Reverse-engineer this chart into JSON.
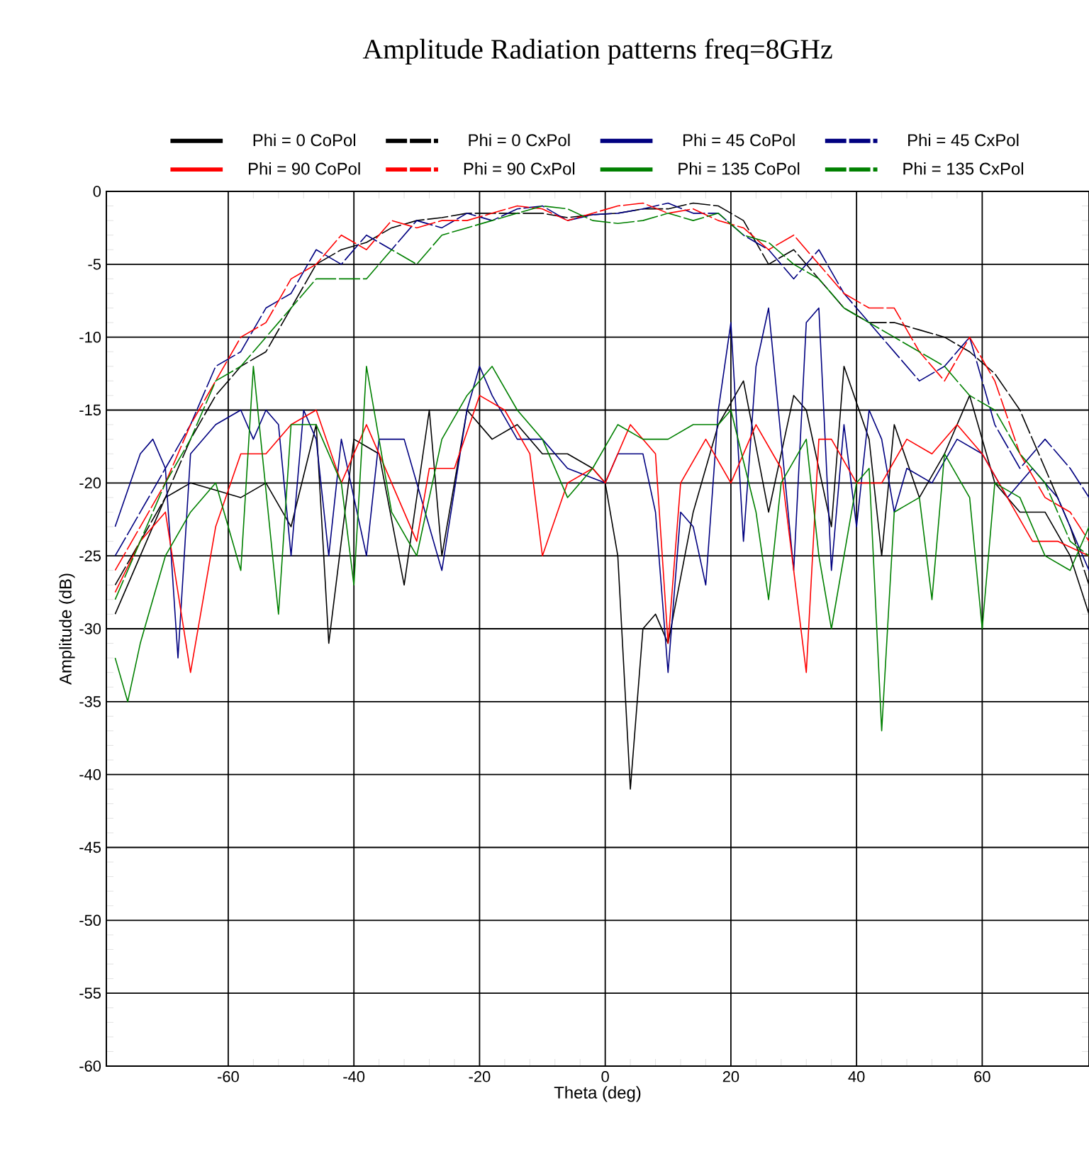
{
  "chart_data": {
    "type": "line",
    "title": "Amplitude Radiation patterns freq=8GHz",
    "xlabel": "Theta (deg)",
    "ylabel": "Amplitude (dB)",
    "x": [
      -78,
      -74,
      -70,
      -66,
      -62,
      -58,
      -54,
      -50,
      -46,
      -42,
      -38,
      -34,
      -30,
      -26,
      -22,
      -18,
      -14,
      -10,
      -6,
      -2,
      2,
      6,
      10,
      14,
      18,
      22,
      26,
      30,
      34,
      38,
      42,
      46,
      50,
      54,
      58,
      62,
      66,
      70,
      74,
      77
    ],
    "series": [
      {
        "name": "Phi = 0 CoPol",
        "color": "#000000",
        "line_style": "solid",
        "x": [
          -78,
          -74,
          -70,
          -66,
          -62,
          -58,
          -54,
          -50,
          -46,
          -44,
          -40,
          -36,
          -32,
          -28,
          -26,
          -22,
          -18,
          -14,
          -10,
          -6,
          -2,
          0,
          2,
          4,
          6,
          8,
          10,
          14,
          18,
          22,
          26,
          30,
          32,
          36,
          38,
          42,
          44,
          46,
          50,
          54,
          58,
          62,
          66,
          70,
          74,
          77
        ],
        "values": [
          -29,
          -25,
          -21,
          -20,
          -20.5,
          -21,
          -20,
          -23,
          -16,
          -31,
          -17,
          -18,
          -27,
          -15,
          -25,
          -15,
          -17,
          -16,
          -18,
          -18,
          -19,
          -20,
          -25,
          -41,
          -30,
          -29,
          -31,
          -22,
          -16,
          -13,
          -22,
          -14,
          -15,
          -23,
          -12,
          -17,
          -25,
          -16,
          -21,
          -18,
          -14,
          -20,
          -22,
          -22,
          -25,
          -29
        ]
      },
      {
        "name": "Phi = 0 CxPol",
        "color": "#000000",
        "line_style": "dashed",
        "values": [
          -27,
          -24,
          -21,
          -17,
          -14,
          -12,
          -11,
          -8,
          -5,
          -4,
          -3.5,
          -2.5,
          -2,
          -1.8,
          -1.5,
          -1.5,
          -1.5,
          -1.5,
          -1.8,
          -1.6,
          -1.5,
          -1.2,
          -1.2,
          -0.8,
          -1,
          -2,
          -5,
          -4,
          -6,
          -8,
          -9,
          -9,
          -9.5,
          -10,
          -11,
          -12.5,
          -15,
          -19,
          -23,
          -27
        ]
      },
      {
        "name": "Phi = 45 CoPol",
        "color": "#000080",
        "line_style": "solid",
        "x": [
          -78,
          -74,
          -72,
          -70,
          -68,
          -66,
          -62,
          -58,
          -56,
          -54,
          -52,
          -50,
          -48,
          -46,
          -44,
          -42,
          -38,
          -36,
          -32,
          -30,
          -26,
          -22,
          -20,
          -18,
          -14,
          -10,
          -6,
          0,
          2,
          6,
          8,
          10,
          12,
          14,
          16,
          18,
          20,
          22,
          24,
          26,
          30,
          32,
          34,
          36,
          38,
          40,
          42,
          44,
          46,
          48,
          52,
          56,
          60,
          64,
          68,
          72,
          77
        ],
        "values": [
          -23,
          -18,
          -17,
          -19,
          -32,
          -18,
          -16,
          -15,
          -17,
          -15,
          -16,
          -25,
          -15,
          -17,
          -25,
          -17,
          -25,
          -17,
          -17,
          -20,
          -26,
          -15,
          -12,
          -14,
          -17,
          -17,
          -19,
          -20,
          -18,
          -18,
          -22,
          -33,
          -22,
          -23,
          -27,
          -15,
          -9,
          -24,
          -12,
          -8,
          -26,
          -9,
          -8,
          -26,
          -16,
          -23,
          -15,
          -17,
          -22,
          -19,
          -20,
          -17,
          -18,
          -21,
          -19,
          -21,
          -26
        ]
      },
      {
        "name": "Phi = 45 CxPol",
        "color": "#000080",
        "line_style": "dashed",
        "values": [
          -25,
          -22,
          -19,
          -16,
          -12,
          -11,
          -8,
          -7,
          -4,
          -5,
          -3,
          -4,
          -2,
          -2.5,
          -1.5,
          -2,
          -1.2,
          -1,
          -2,
          -1.6,
          -1.5,
          -1.2,
          -0.8,
          -1.5,
          -1.5,
          -3,
          -4,
          -6,
          -4,
          -7,
          -9,
          -11,
          -13,
          -12,
          -10,
          -16,
          -19,
          -17,
          -19,
          -21
        ]
      },
      {
        "name": "Phi = 90 CoPol",
        "color": "#ff0000",
        "line_style": "solid",
        "x": [
          -78,
          -74,
          -70,
          -66,
          -62,
          -58,
          -54,
          -50,
          -46,
          -42,
          -38,
          -34,
          -30,
          -28,
          -24,
          -20,
          -16,
          -12,
          -10,
          -6,
          -2,
          0,
          2,
          4,
          8,
          10,
          12,
          16,
          20,
          24,
          28,
          32,
          34,
          36,
          40,
          44,
          48,
          52,
          56,
          60,
          64,
          68,
          72,
          77
        ],
        "values": [
          -27.5,
          -24,
          -22,
          -33,
          -23,
          -18,
          -18,
          -16,
          -15,
          -20,
          -16,
          -20,
          -24,
          -19,
          -19,
          -14,
          -15,
          -18,
          -25,
          -20,
          -19,
          -20,
          -18,
          -16,
          -18,
          -31,
          -20,
          -17,
          -20,
          -16,
          -19,
          -33,
          -17,
          -17,
          -20,
          -20,
          -17,
          -18,
          -16,
          -18,
          -21,
          -24,
          -24,
          -25
        ]
      },
      {
        "name": "Phi = 90 CxPol",
        "color": "#ff0000",
        "line_style": "dashed",
        "values": [
          -26,
          -23,
          -20,
          -16,
          -13,
          -10,
          -9,
          -6,
          -5,
          -3,
          -4,
          -2,
          -2.5,
          -2,
          -2,
          -1.5,
          -1,
          -1.2,
          -2,
          -1.5,
          -1,
          -0.8,
          -1.5,
          -1.2,
          -2,
          -2.5,
          -4,
          -3,
          -5,
          -7,
          -8,
          -8,
          -11,
          -13,
          -10,
          -13,
          -18,
          -21,
          -22,
          -24
        ]
      },
      {
        "name": "Phi = 135 CoPol",
        "color": "#008000",
        "line_style": "solid",
        "x": [
          -78,
          -76,
          -74,
          -70,
          -66,
          -62,
          -58,
          -56,
          -52,
          -50,
          -46,
          -42,
          -40,
          -38,
          -34,
          -30,
          -26,
          -22,
          -18,
          -14,
          -10,
          -6,
          -2,
          2,
          6,
          10,
          14,
          18,
          20,
          24,
          26,
          28,
          32,
          34,
          36,
          40,
          42,
          44,
          46,
          50,
          52,
          54,
          58,
          60,
          62,
          66,
          70,
          74,
          77
        ],
        "values": [
          -32,
          -35,
          -31,
          -25,
          -22,
          -20,
          -26,
          -12,
          -29,
          -16,
          -16,
          -20,
          -27,
          -12,
          -22,
          -25,
          -17,
          -14,
          -12,
          -15,
          -17,
          -21,
          -19,
          -16,
          -17,
          -17,
          -16,
          -16,
          -15,
          -22,
          -28,
          -20,
          -17,
          -25,
          -30,
          -20,
          -19,
          -37,
          -22,
          -21,
          -28,
          -18,
          -21,
          -30,
          -20,
          -21,
          -25,
          -26,
          -23
        ]
      },
      {
        "name": "Phi = 135 CxPol",
        "color": "#008000",
        "line_style": "dashed",
        "values": [
          -28,
          -24,
          -20,
          -17,
          -13,
          -12,
          -10,
          -8,
          -6,
          -6,
          -6,
          -4,
          -5,
          -3,
          -2.5,
          -2,
          -1.5,
          -1,
          -1.2,
          -2,
          -2.2,
          -2,
          -1.5,
          -2,
          -1.5,
          -3,
          -3.5,
          -5,
          -6,
          -8,
          -9,
          -10,
          -11,
          -12,
          -14,
          -15,
          -18,
          -20,
          -24,
          -25
        ]
      }
    ],
    "xlim": [
      -79.4,
      77
    ],
    "ylim": [
      -60,
      0
    ],
    "xticks": [
      -60,
      -40,
      -20,
      0,
      20,
      40,
      60
    ],
    "yticks": [
      0,
      -5,
      -10,
      -15,
      -20,
      -25,
      -30,
      -35,
      -40,
      -45,
      -50,
      -55,
      -60
    ],
    "grid": true,
    "legend": "top",
    "marker": "none"
  }
}
